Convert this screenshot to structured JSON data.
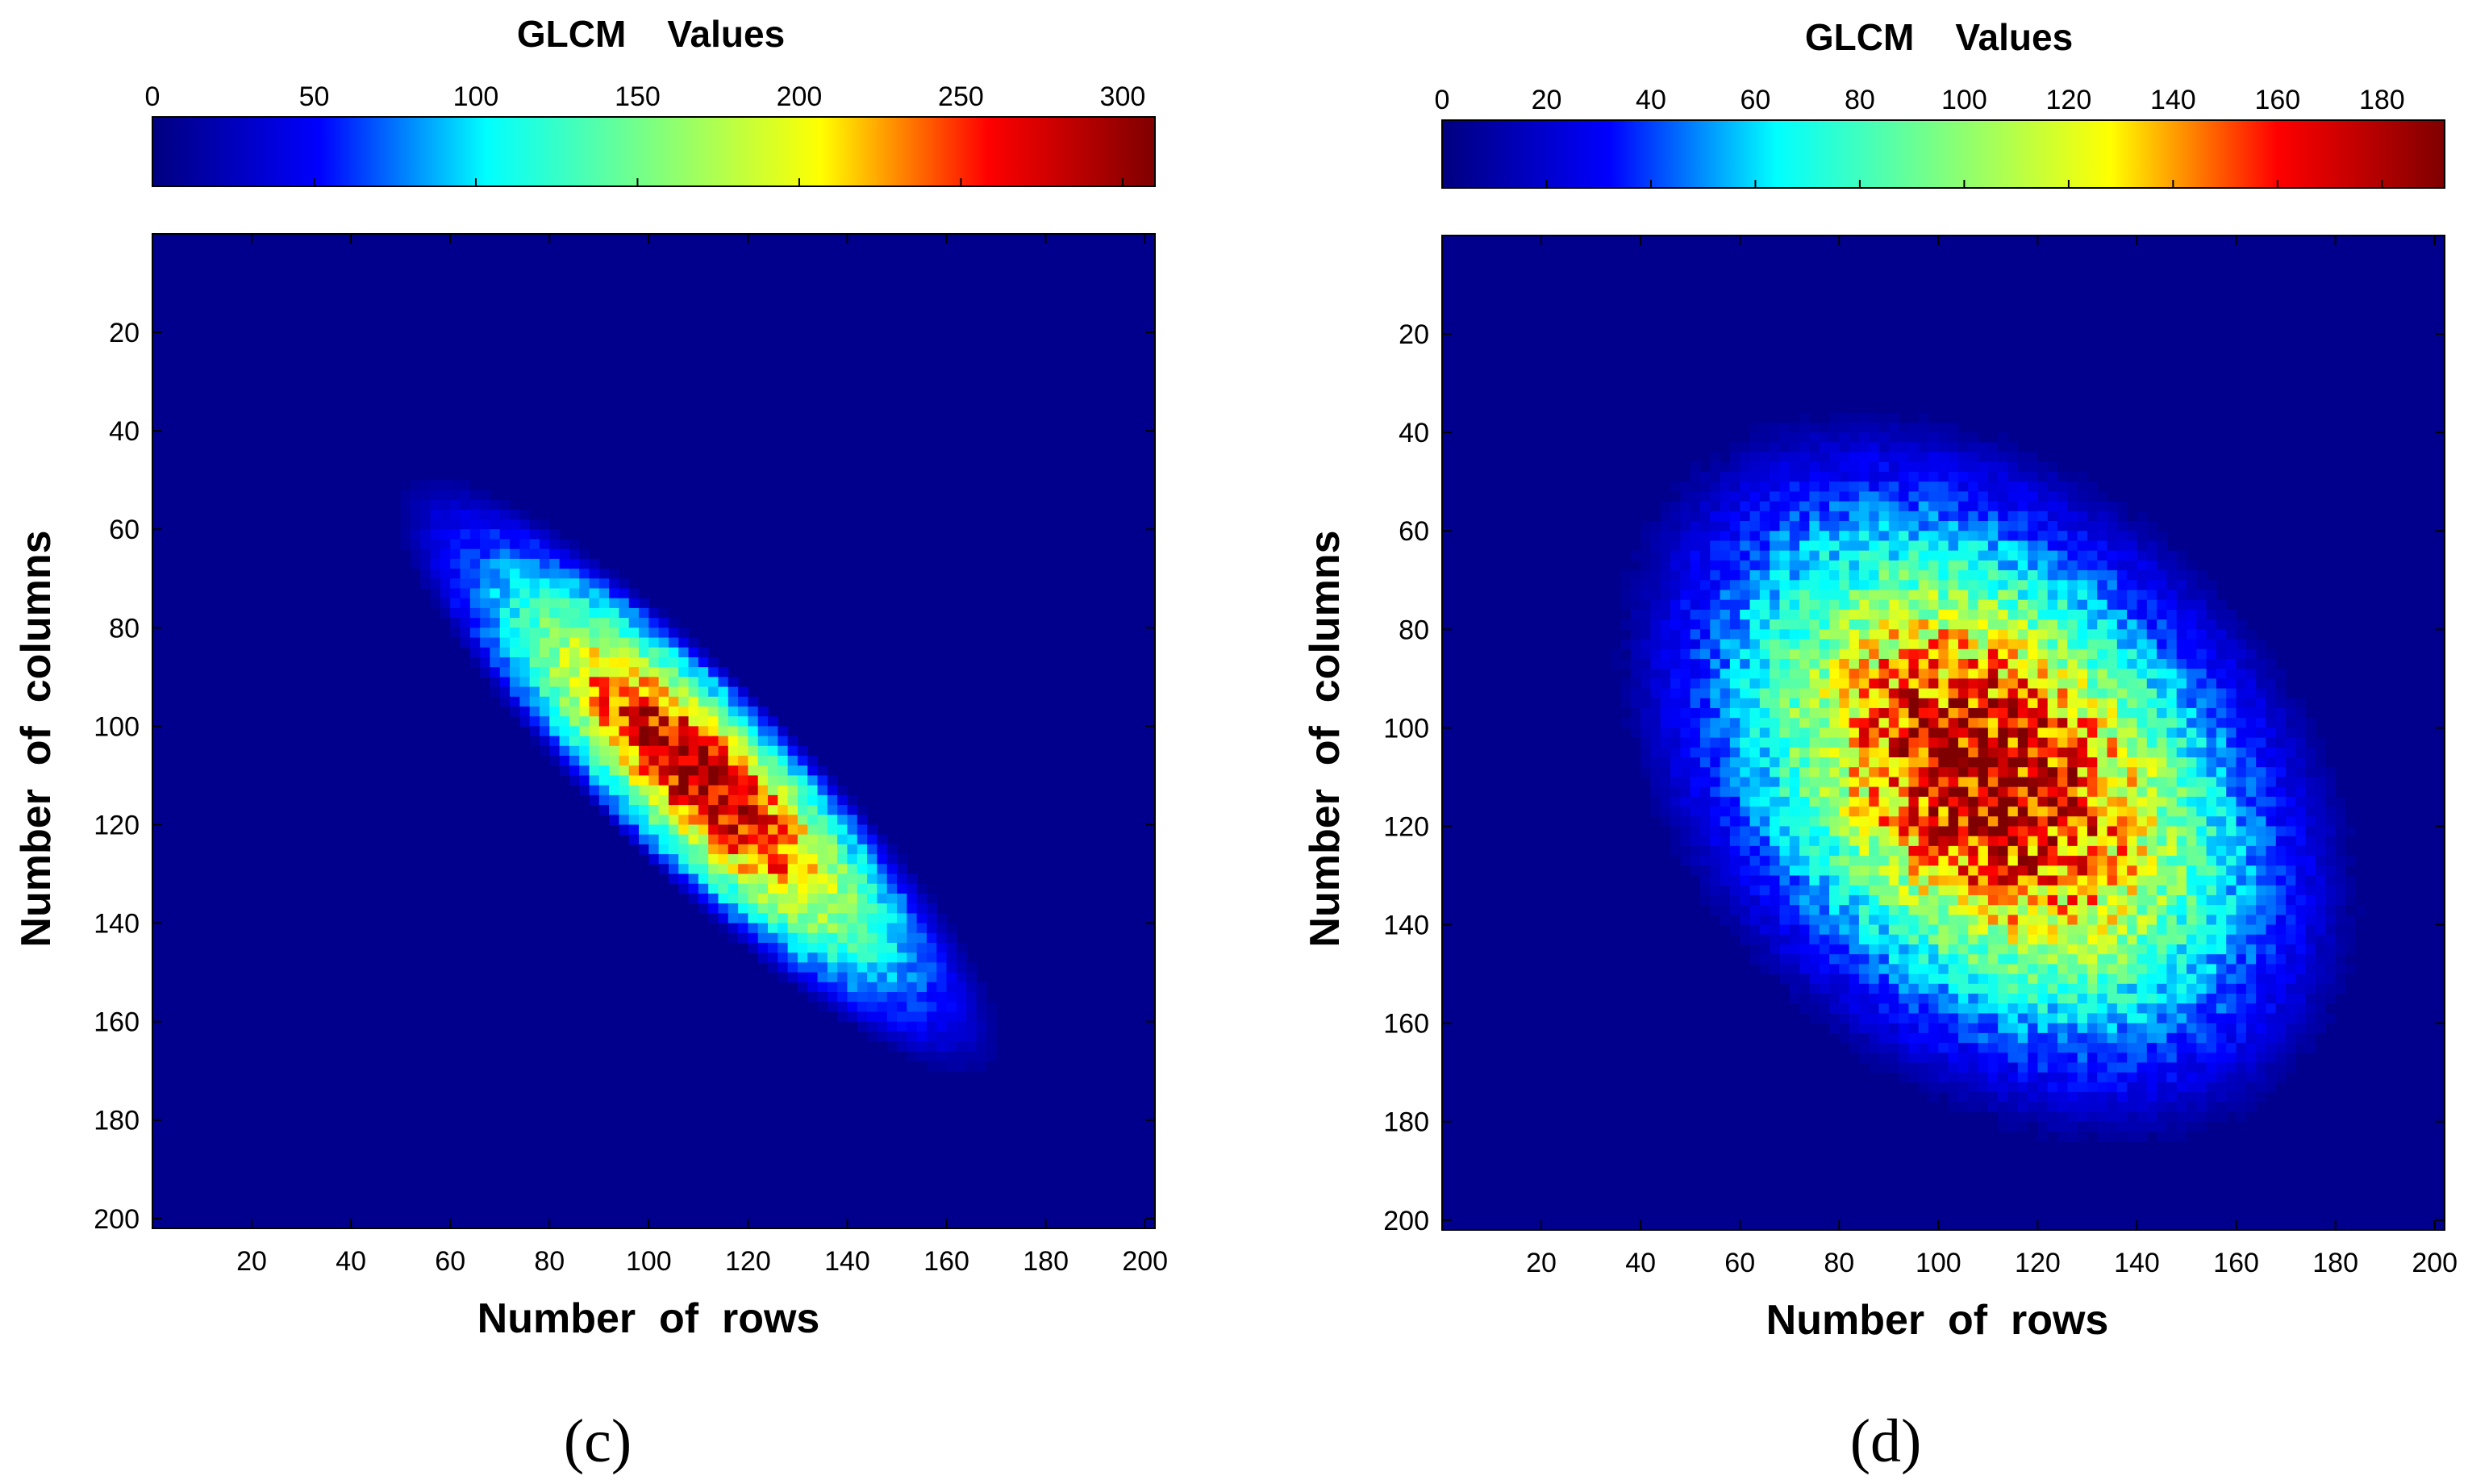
{
  "figure": {
    "panels_count": 2
  },
  "colormap": {
    "name": "jet",
    "stops": [
      "#00007f",
      "#0000ff",
      "#00ffff",
      "#7fff7f",
      "#ffff00",
      "#ff0000",
      "#7f0000"
    ],
    "background_color": "#00008c"
  },
  "chart_data": [
    {
      "type": "heatmap",
      "panel_label": "(c)",
      "title": "GLCM    Values",
      "colorbar": {
        "min": 0,
        "max": 310,
        "ticks": [
          0,
          50,
          100,
          150,
          200,
          250,
          300
        ],
        "tick_labels": [
          "0",
          "50",
          "100",
          "150",
          "200",
          "250",
          "300"
        ]
      },
      "xlabel": "Number  of  rows",
      "ylabel": "Number  of  columns",
      "xlim": [
        0,
        202
      ],
      "ylim": [
        202,
        0
      ],
      "xticks": [
        20,
        40,
        60,
        80,
        100,
        120,
        140,
        160,
        180,
        200
      ],
      "xtick_labels": [
        "20",
        "40",
        "60",
        "80",
        "100",
        "120",
        "140",
        "160",
        "180",
        "200"
      ],
      "yticks": [
        20,
        40,
        60,
        80,
        100,
        120,
        140,
        160,
        180,
        200
      ],
      "ytick_labels": [
        "20",
        "40",
        "60",
        "80",
        "100",
        "120",
        "140",
        "160",
        "180",
        "200"
      ],
      "distribution": {
        "shape": "elongated diagonal ellipse",
        "peak_value": 300,
        "center": [
          110,
          110
        ],
        "major_axis_angle_deg": 45,
        "sigma_major": 36,
        "sigma_minor": 10,
        "support_major": 80,
        "support_minor": 18,
        "noise": 0.18,
        "seed": 7
      }
    },
    {
      "type": "heatmap",
      "panel_label": "(d)",
      "title": "GLCM    Values",
      "colorbar": {
        "min": 0,
        "max": 192,
        "ticks": [
          0,
          20,
          40,
          60,
          80,
          100,
          120,
          140,
          160,
          180
        ],
        "tick_labels": [
          "0",
          "20",
          "40",
          "60",
          "80",
          "100",
          "120",
          "140",
          "160",
          "180"
        ]
      },
      "xlabel": "Number  of  rows",
      "ylabel": "Number  of  columns",
      "xlim": [
        0,
        202
      ],
      "ylim": [
        202,
        0
      ],
      "xticks": [
        20,
        40,
        60,
        80,
        100,
        120,
        140,
        160,
        180,
        200
      ],
      "xtick_labels": [
        "20",
        "40",
        "60",
        "80",
        "100",
        "120",
        "140",
        "160",
        "180",
        "200"
      ],
      "yticks": [
        20,
        40,
        60,
        80,
        100,
        120,
        140,
        160,
        180,
        200
      ],
      "ytick_labels": [
        "20",
        "40",
        "60",
        "80",
        "100",
        "120",
        "140",
        "160",
        "180",
        "200"
      ],
      "distribution": {
        "shape": "broad tilted ellipse",
        "peak_value": 185,
        "center": [
          110,
          110
        ],
        "major_axis_angle_deg": 45,
        "sigma_major": 38,
        "sigma_minor": 26,
        "support_major": 82,
        "support_minor": 58,
        "noise": 0.26,
        "seed": 13
      }
    }
  ]
}
